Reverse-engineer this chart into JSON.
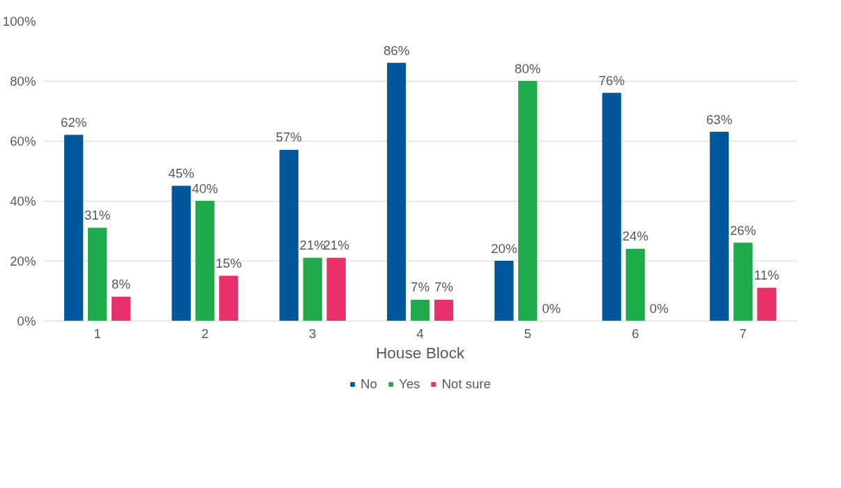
{
  "chart_data": {
    "type": "bar",
    "xlabel": "House Block",
    "categories": [
      "1",
      "2",
      "3",
      "4",
      "5",
      "6",
      "7"
    ],
    "series": [
      {
        "name": "No",
        "color": "#00589b",
        "values": [
          62,
          45,
          57,
          86,
          20,
          76,
          63
        ],
        "value_labels": [
          "62%",
          "45%",
          "57%",
          "86%",
          "20%",
          "76%",
          "63%"
        ]
      },
      {
        "name": "Yes",
        "color": "#1faa4b",
        "values": [
          31,
          40,
          21,
          7,
          80,
          24,
          26
        ],
        "value_labels": [
          "31%",
          "40%",
          "21%",
          "7%",
          "80%",
          "24%",
          "26%"
        ]
      },
      {
        "name": "Not sure",
        "color": "#e8306a",
        "values": [
          8,
          15,
          21,
          7,
          0,
          0,
          11
        ],
        "value_labels": [
          "8%",
          "15%",
          "21%",
          "7%",
          "0%",
          "0%",
          "11%"
        ]
      }
    ],
    "ylim": [
      0,
      100
    ],
    "yticks": [
      {
        "value": 0,
        "label": "0%"
      },
      {
        "value": 20,
        "label": "20%"
      },
      {
        "value": 40,
        "label": "40%"
      },
      {
        "value": 60,
        "label": "60%"
      },
      {
        "value": 80,
        "label": "80%"
      },
      {
        "value": 100,
        "label": "100%"
      }
    ],
    "grid": "y",
    "legend": "bottom"
  }
}
